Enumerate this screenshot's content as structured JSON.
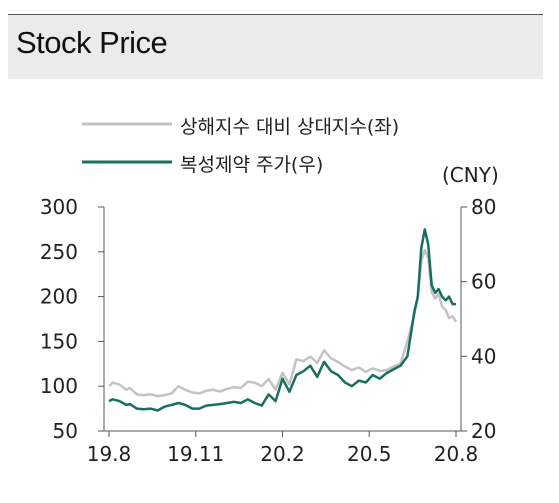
{
  "header": {
    "title": "Stock Price"
  },
  "chart_data": {
    "type": "line",
    "x_ticks": [
      "19.8",
      "19.11",
      "20.2",
      "20.5",
      "20.8"
    ],
    "y_left": {
      "ticks": [
        300,
        250,
        200,
        150,
        100,
        50
      ],
      "range": [
        50,
        300
      ]
    },
    "y_right": {
      "ticks": [
        80,
        60,
        40,
        20
      ],
      "range": [
        20,
        80
      ],
      "unit": "(CNY)"
    },
    "series": [
      {
        "name": "상해지수 대비 상대지수(좌)",
        "axis": "left",
        "color": "#c3c3c3",
        "x": [
          0,
          0.01,
          0.03,
          0.05,
          0.06,
          0.08,
          0.1,
          0.12,
          0.14,
          0.16,
          0.18,
          0.2,
          0.22,
          0.24,
          0.26,
          0.28,
          0.3,
          0.32,
          0.34,
          0.36,
          0.38,
          0.4,
          0.42,
          0.44,
          0.46,
          0.48,
          0.5,
          0.52,
          0.54,
          0.56,
          0.58,
          0.6,
          0.62,
          0.64,
          0.66,
          0.68,
          0.7,
          0.72,
          0.74,
          0.76,
          0.78,
          0.8,
          0.82,
          0.84,
          0.86,
          0.88,
          0.89,
          0.9,
          0.91,
          0.92,
          0.93,
          0.94,
          0.95,
          0.96,
          0.97,
          0.98,
          0.99,
          1.0
        ],
        "values": [
          100,
          104,
          102,
          96,
          98,
          91,
          90,
          91,
          89,
          90,
          92,
          100,
          96,
          93,
          92,
          95,
          96,
          94,
          97,
          99,
          98,
          105,
          104,
          100,
          108,
          96,
          115,
          102,
          130,
          128,
          133,
          126,
          140,
          131,
          127,
          122,
          118,
          121,
          116,
          120,
          117,
          118,
          122,
          125,
          150,
          180,
          200,
          240,
          252,
          243,
          205,
          198,
          203,
          189,
          185,
          176,
          178,
          172
        ]
      },
      {
        "name": "복성제약 주가(우)",
        "axis": "right",
        "color": "#17705f",
        "x": [
          0,
          0.01,
          0.03,
          0.05,
          0.06,
          0.08,
          0.1,
          0.12,
          0.14,
          0.16,
          0.18,
          0.2,
          0.22,
          0.24,
          0.26,
          0.28,
          0.3,
          0.32,
          0.34,
          0.36,
          0.38,
          0.4,
          0.42,
          0.44,
          0.46,
          0.48,
          0.5,
          0.52,
          0.54,
          0.56,
          0.58,
          0.6,
          0.62,
          0.64,
          0.66,
          0.68,
          0.7,
          0.72,
          0.74,
          0.76,
          0.78,
          0.8,
          0.82,
          0.84,
          0.86,
          0.88,
          0.89,
          0.9,
          0.91,
          0.92,
          0.93,
          0.94,
          0.95,
          0.96,
          0.97,
          0.98,
          0.99,
          1.0
        ],
        "values": [
          28,
          28.5,
          28,
          27,
          27.2,
          26,
          25.8,
          26,
          25.5,
          26.5,
          27,
          27.5,
          27,
          26,
          26,
          26.8,
          27,
          27.2,
          27.5,
          27.8,
          27.5,
          28.5,
          27.5,
          26.8,
          29.8,
          28,
          34,
          30.5,
          35,
          36,
          37.5,
          34.5,
          38.5,
          36,
          35,
          33,
          32,
          33.5,
          33,
          35,
          34,
          35.5,
          36.5,
          37.5,
          40,
          52,
          56,
          69,
          74,
          70,
          59,
          57,
          58,
          56,
          55,
          56,
          54,
          54
        ]
      }
    ],
    "legend": "top"
  }
}
